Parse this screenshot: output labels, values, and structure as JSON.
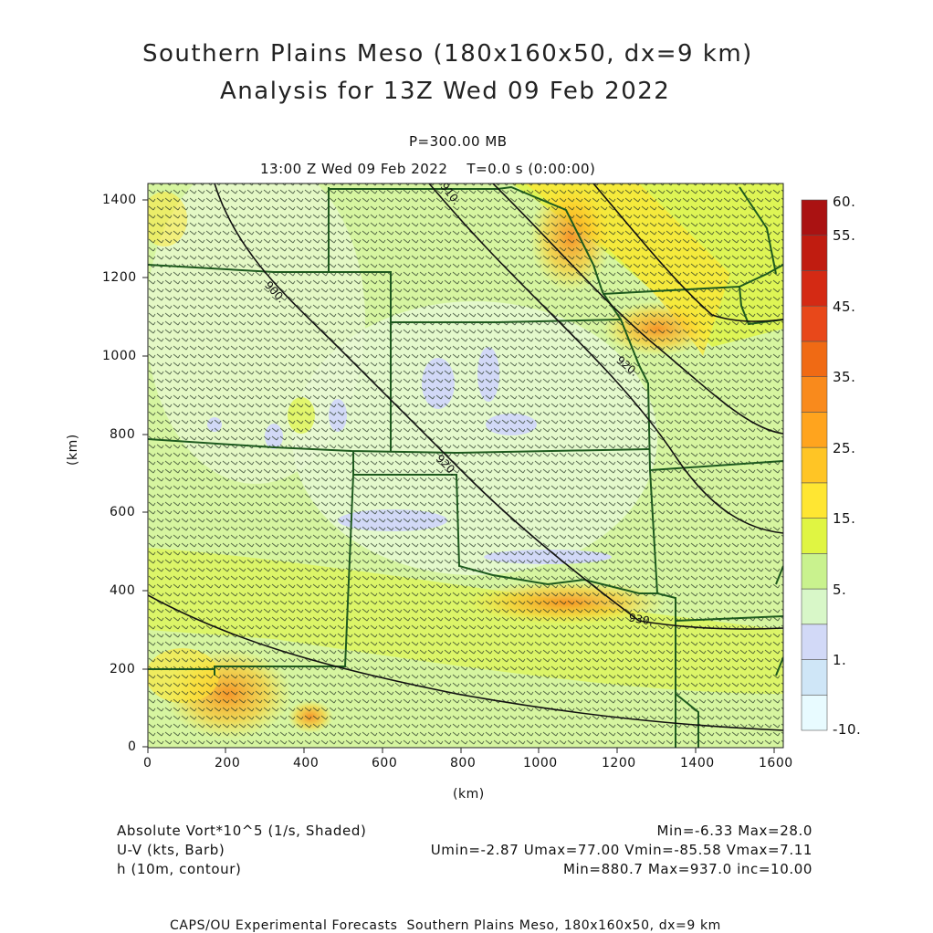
{
  "title": {
    "line1": "Southern Plains Meso (180x160x50, dx=9 km)",
    "line2": "Analysis for 13Z Wed 09 Feb 2022"
  },
  "level": "P=300.00 MB",
  "valid": "13:00 Z Wed 09 Feb 2022    T=0.0 s (0:00:00)",
  "axes": {
    "x_label": "(km)",
    "y_label": "(km)",
    "x_ticks": [
      "0",
      "200",
      "400",
      "600",
      "800",
      "1000",
      "1200",
      "1400",
      "1600"
    ],
    "y_ticks": [
      "0",
      "200",
      "400",
      "600",
      "800",
      "1000",
      "1200",
      "1400"
    ],
    "x_values": [
      0,
      200,
      400,
      600,
      800,
      1000,
      1200,
      1400,
      1600
    ],
    "y_values": [
      0,
      200,
      400,
      600,
      800,
      1000,
      1200,
      1400
    ],
    "x_range": [
      0,
      1620
    ],
    "y_range": [
      0,
      1440
    ]
  },
  "colorbar": {
    "labels": [
      "60.",
      "55.",
      "45.",
      "35.",
      "25.",
      "15.",
      "5.",
      "1.",
      "-10."
    ],
    "colors": [
      "#e8fbff",
      "#cfe6f7",
      "#d2d9f7",
      "#d8f7c8",
      "#c9f28e",
      "#e0f542",
      "#ffe632",
      "#ffc525",
      "#ffa41e",
      "#f98a1c",
      "#f06a14",
      "#e8481a",
      "#d42a14",
      "#c01c10",
      "#aa1212"
    ]
  },
  "contours": {
    "labels": [
      "900.",
      "910.",
      "920.",
      "920.",
      "930."
    ],
    "color": "#111111"
  },
  "legend": {
    "row1_name": "Absolute Vort*10^5 (1/s, Shaded)",
    "row1_stats": "Min=-6.33 Max=28.0",
    "row2_name": "U-V (kts, Barb)",
    "row2_stats": "Umin=-2.87 Umax=77.00 Vmin=-85.58 Vmax=7.11",
    "row3_name": "h (10m, contour)",
    "row3_stats": "Min=880.7 Max=937.0 inc=10.00"
  },
  "footer": "CAPS/OU Experimental Forecasts  Southern Plains Meso, 180x160x50, dx=9 km",
  "style": {
    "background_field": "#d6f5a0",
    "border_color": "#1e5a1e",
    "barb_color": "#223322"
  }
}
